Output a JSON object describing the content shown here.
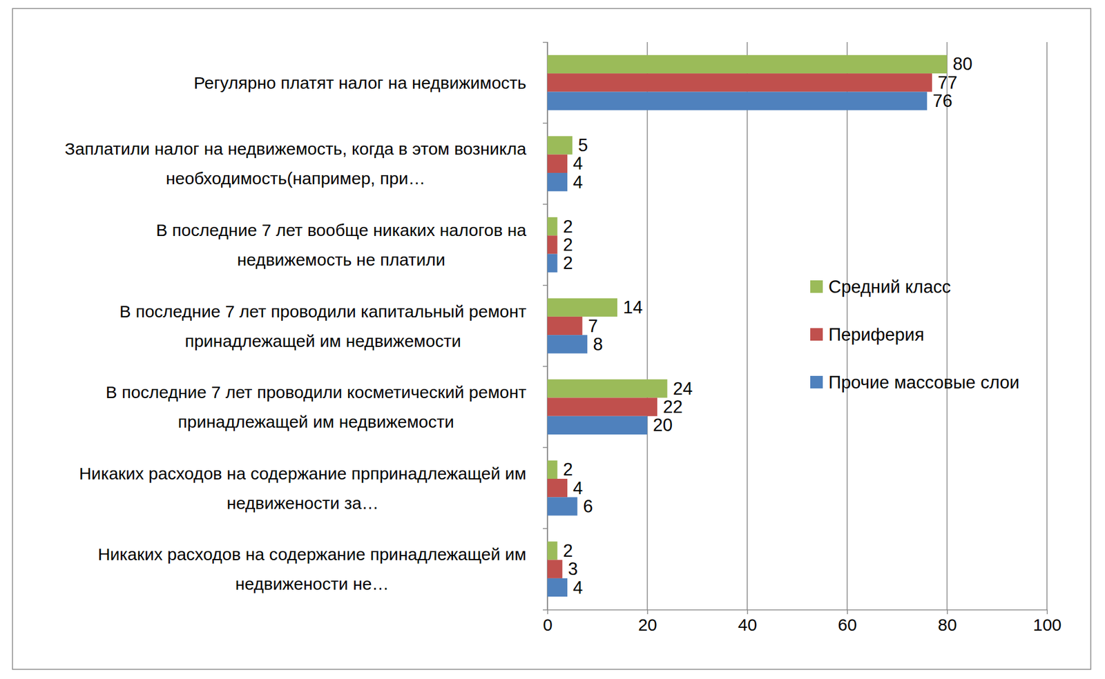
{
  "chart_data": {
    "type": "bar",
    "orientation": "horizontal",
    "categories": [
      "Регулярно платят налог на недвижимость",
      "Заплатили налог на недвижемость, когда в этом возникла необходимость(например, при…",
      "В последние 7 лет вообще никаких налогов на недвижемость не платили",
      "В последние 7 лет проводили капитальный ремонт принадлежащей им недвижемости",
      "В последние 7 лет проводили косметический ремонт принадлежащей им недвижемости",
      "Никаких расходов на содержание прпринадлежащей им недвижености за…",
      "Никаких расходов на содержание принадлежащей им недвижености не…"
    ],
    "series": [
      {
        "name": "Средний класс",
        "color": "#9bbb59",
        "values": [
          80,
          5,
          2,
          14,
          24,
          2,
          2
        ]
      },
      {
        "name": "Периферия",
        "color": "#c0504d",
        "values": [
          77,
          4,
          2,
          7,
          22,
          4,
          3
        ]
      },
      {
        "name": "Прочие массовые слои",
        "color": "#4f81bd",
        "values": [
          76,
          4,
          2,
          8,
          20,
          6,
          4
        ]
      }
    ],
    "xlim": [
      0,
      100
    ],
    "xticks": [
      0,
      20,
      40,
      60,
      80,
      100
    ],
    "grid": true,
    "legend": "right",
    "data_labels": true
  }
}
